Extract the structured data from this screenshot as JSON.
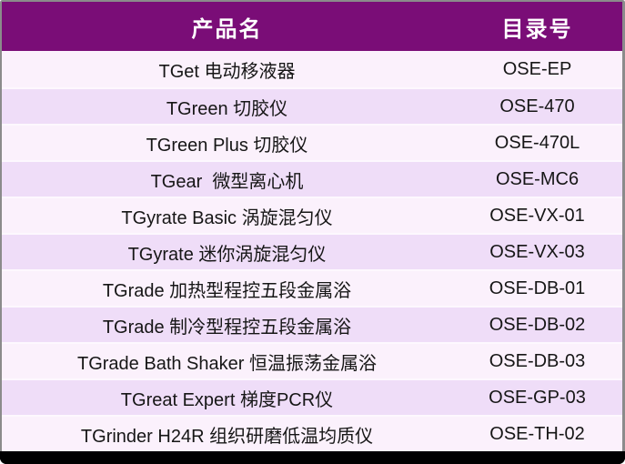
{
  "table": {
    "columns": [
      {
        "label": "产品名"
      },
      {
        "label": "目录号"
      }
    ],
    "rows": [
      {
        "product": "TGet 电动移液器",
        "catalog": "OSE-EP"
      },
      {
        "product": "TGreen 切胶仪",
        "catalog": "OSE-470"
      },
      {
        "product": "TGreen Plus 切胶仪",
        "catalog": "OSE-470L"
      },
      {
        "product": "TGear  微型离心机",
        "catalog": "OSE-MC6"
      },
      {
        "product": "TGyrate Basic 涡旋混匀仪",
        "catalog": "OSE-VX-01"
      },
      {
        "product": "TGyrate 迷你涡旋混匀仪",
        "catalog": "OSE-VX-03"
      },
      {
        "product": "TGrade 加热型程控五段金属浴",
        "catalog": "OSE-DB-01"
      },
      {
        "product": "TGrade 制冷型程控五段金属浴",
        "catalog": "OSE-DB-02"
      },
      {
        "product": "TGrade Bath Shaker 恒温振荡金属浴",
        "catalog": "OSE-DB-03"
      },
      {
        "product": "TGreat Expert 梯度PCR仪",
        "catalog": "OSE-GP-03"
      },
      {
        "product": "TGrinder H24R 组织研磨低温均质仪",
        "catalog": "OSE-TH-02"
      }
    ],
    "colors": {
      "header_background": "#7A0D77",
      "header_text": "#FFFFFF",
      "row_light": "#FBF1FC",
      "row_dark": "#EFDDF8",
      "border_gray": "#8B8B8B",
      "bottom_bar": "#000000",
      "row_text": "#161616"
    }
  }
}
